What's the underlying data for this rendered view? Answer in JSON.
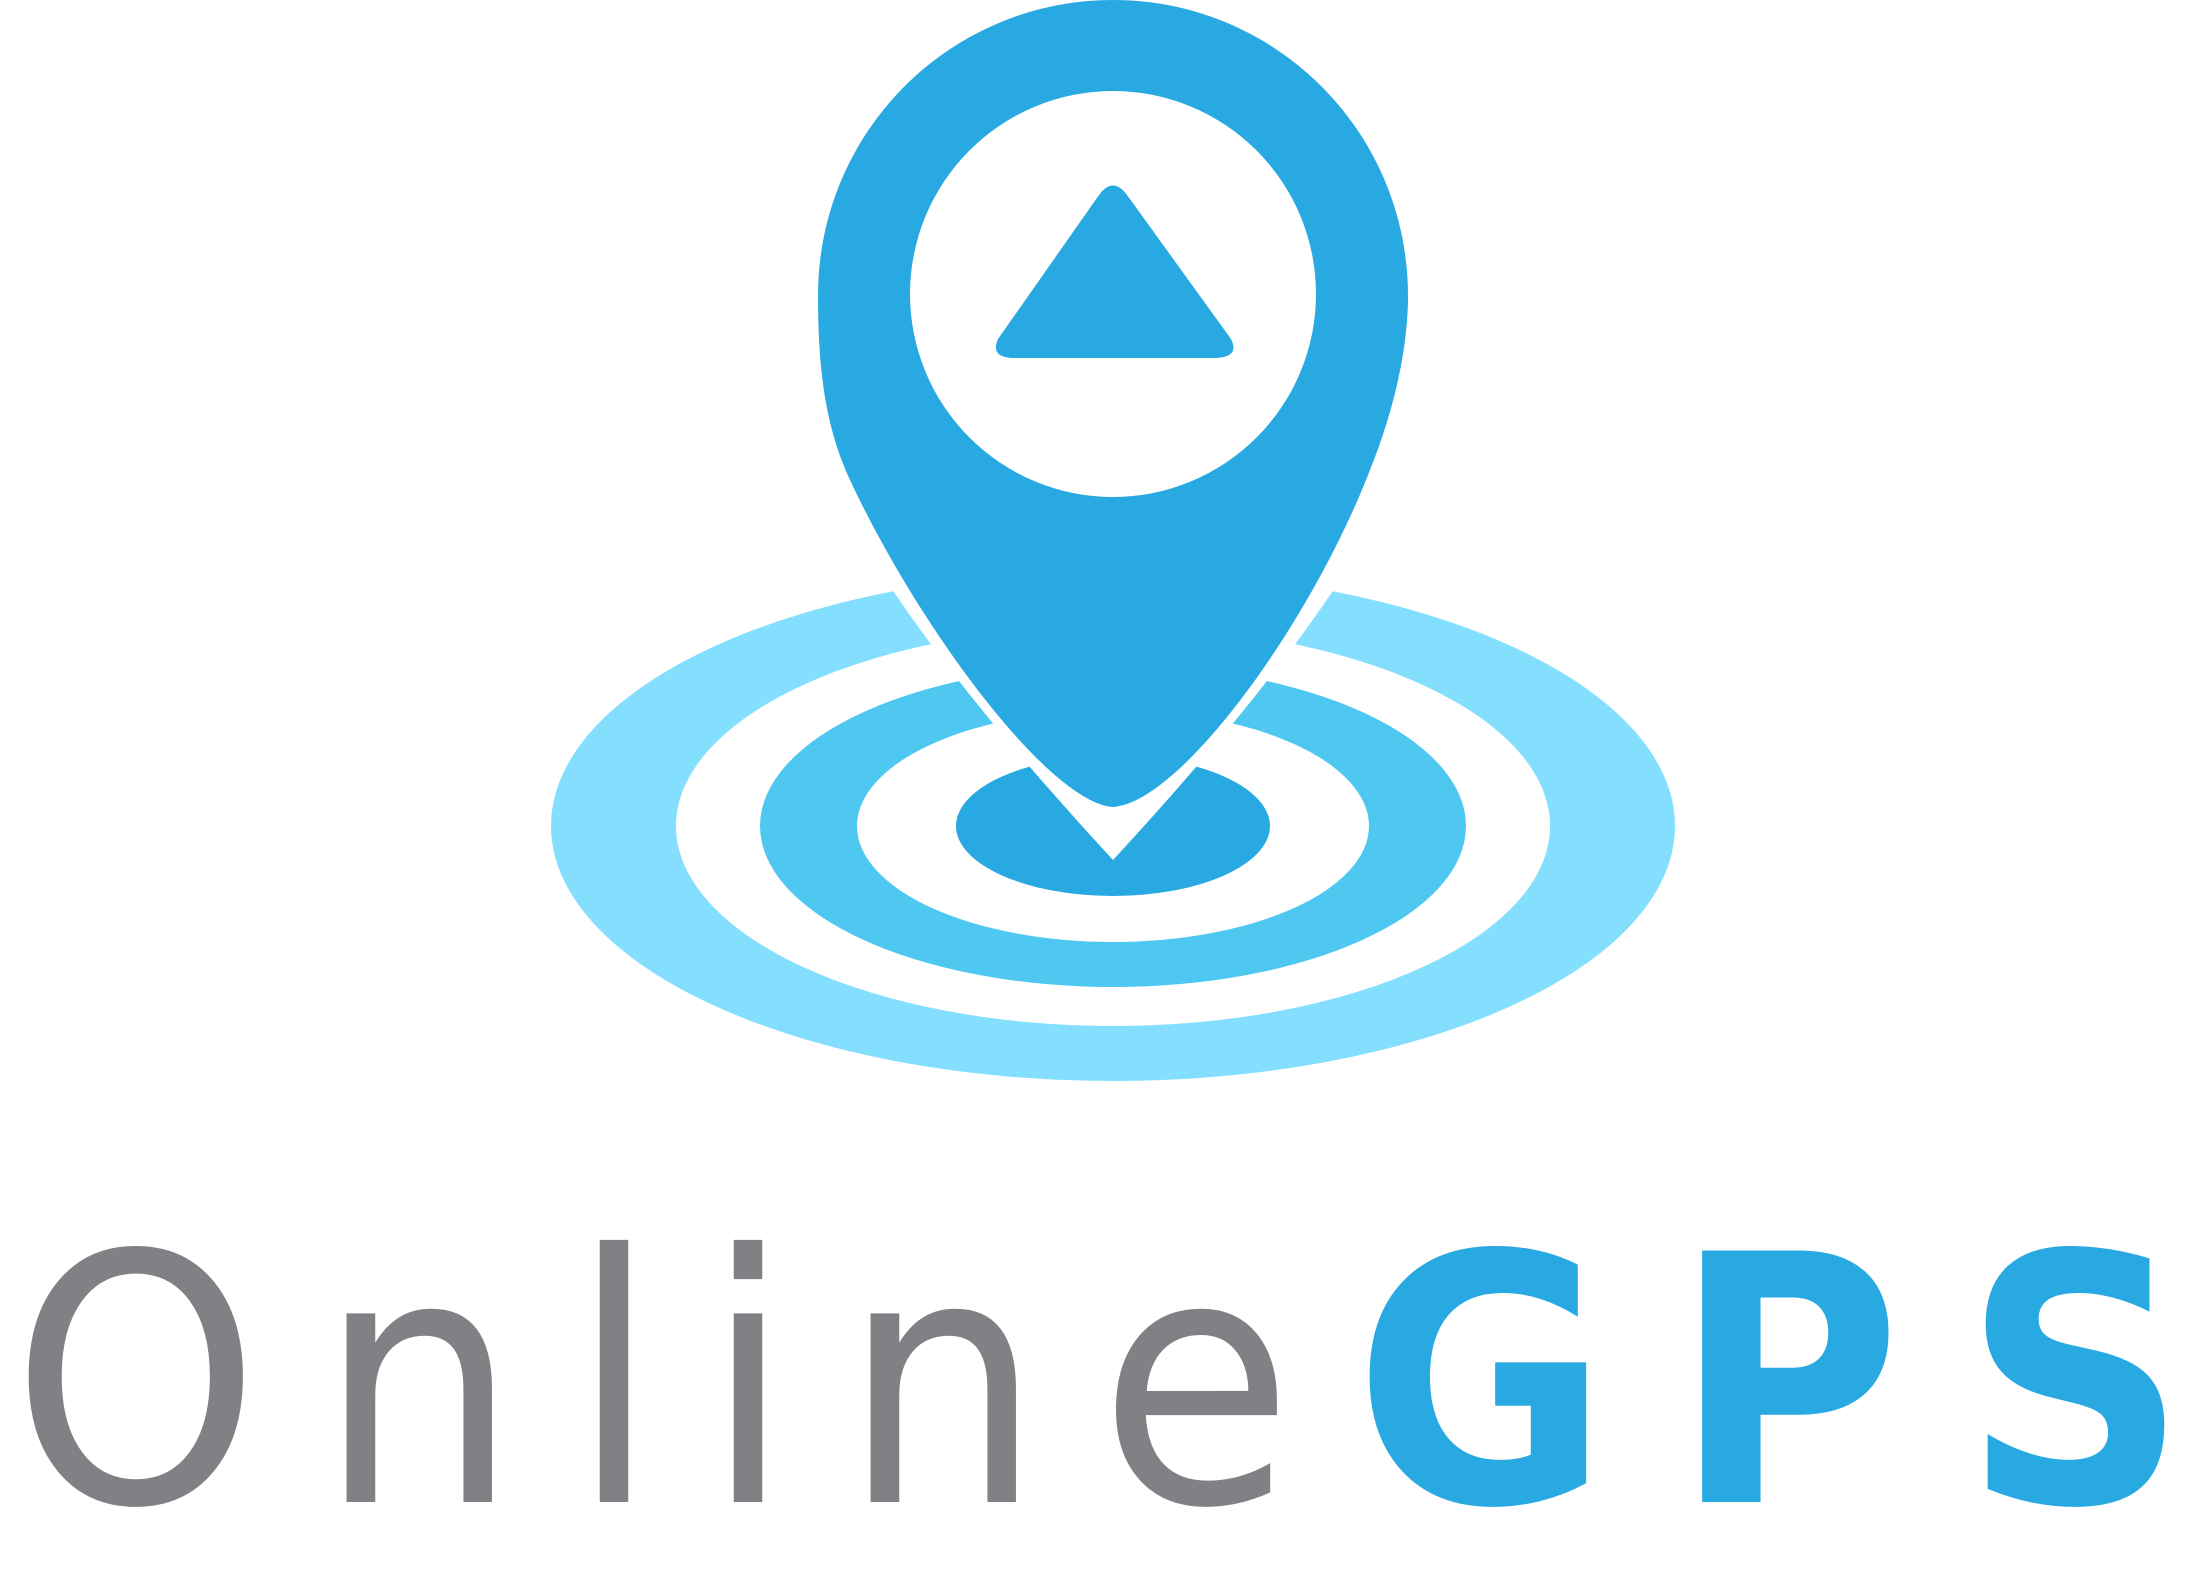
{
  "logo": {
    "icon": "map-pin-with-navigation-arrow-and-radar-rings",
    "word_primary": "Online",
    "word_secondary": "GPS",
    "colors": {
      "pin": "#29A9E1",
      "arrow": "#29A9E1",
      "pin_inner_circle": "#FFFFFF",
      "ring_outer": "#84DFFF",
      "ring_middle": "#4EC7F1",
      "ring_inner": "#29A9E1",
      "word_primary": "#808184",
      "word_secondary": "#29A9E1"
    }
  }
}
